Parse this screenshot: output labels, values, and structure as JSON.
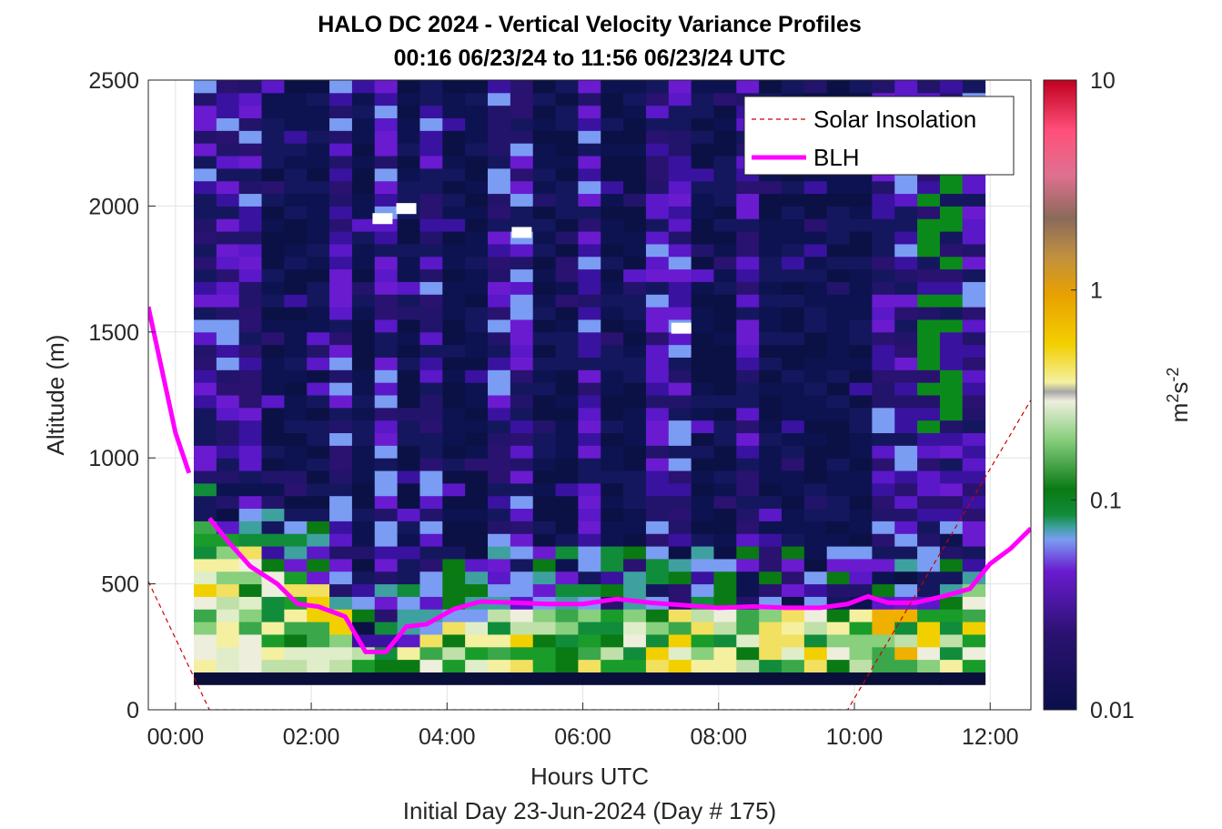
{
  "chart_data": {
    "type": "heatmap",
    "title": "HALO DC 2024 - Vertical Velocity Variance Profiles",
    "subtitle": "00:16 06/23/24 to 11:56 06/23/24  UTC",
    "xlabel": "Hours UTC",
    "xlabel2": "Initial Day 23-Jun-2024 (Day # 175)",
    "ylabel": "Altitude (m)",
    "xlim": [
      -0.4,
      12.6
    ],
    "ylim": [
      0,
      2500
    ],
    "x_ticks": [
      0,
      2,
      4,
      6,
      8,
      10,
      12
    ],
    "x_tick_labels": [
      "00:00",
      "02:00",
      "04:00",
      "06:00",
      "08:00",
      "10:00",
      "12:00"
    ],
    "y_ticks": [
      0,
      500,
      1000,
      1500,
      2000,
      2500
    ],
    "y_tick_labels": [
      "0",
      "500",
      "1000",
      "1500",
      "2000",
      "2500"
    ],
    "grid": true,
    "legend": {
      "placement": "top-right",
      "entries": [
        "Solar Insolation",
        "BLH"
      ]
    },
    "colorbar": {
      "label": "m²s⁻²",
      "label_base": "m",
      "label_sup1": "2",
      "label_mid": "s",
      "label_sup2": "-2",
      "scale": "log",
      "range": [
        0.01,
        10
      ],
      "tick_labels": [
        "0.01",
        "0.1",
        "1",
        "10"
      ],
      "tick_values": [
        0.01,
        0.1,
        1,
        10
      ]
    },
    "heatmap": {
      "time_start": 0.27,
      "time_step": 0.333,
      "n_times": 35,
      "alt_start": 100,
      "alt_step": 50,
      "n_alts": 48
    },
    "series": [
      {
        "name": "BLH",
        "color": "#ff00ff",
        "segments": [
          {
            "x": [
              -0.4,
              -0.2,
              0.0,
              0.2
            ],
            "y": [
              1600,
              1350,
              1100,
              940
            ]
          },
          {
            "x": [
              0.5,
              0.8,
              1.1,
              1.5,
              1.8,
              2.1,
              2.5,
              2.8,
              3.1,
              3.4,
              3.7,
              4.1,
              4.5,
              5.0,
              5.5,
              6.0,
              6.5,
              7.0,
              7.5,
              8.0,
              8.5,
              9.0,
              9.5,
              9.9,
              10.2,
              10.5,
              10.9,
              11.3,
              11.7,
              12.0,
              12.3,
              12.6
            ]
          },
          {
            "note": ""
          }
        ]
      },
      {
        "name": "Solar Insolation",
        "color": "#cc0000",
        "x": [
          -0.4,
          0.5,
          9.9,
          12.6
        ],
        "y": [
          510,
          0,
          0,
          1230
        ]
      }
    ]
  }
}
